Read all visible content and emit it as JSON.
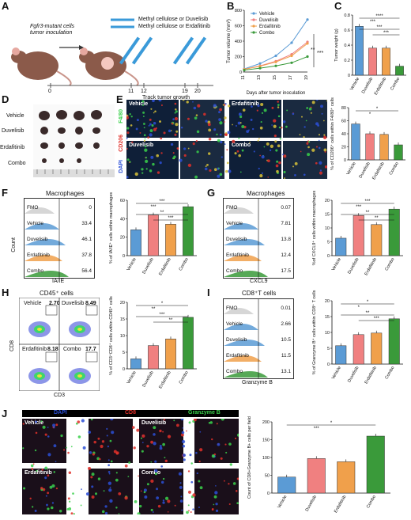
{
  "colors": {
    "vehicle": "#5b9bd5",
    "duvelisib": "#f08080",
    "erdafitinib": "#f0a04b",
    "combo": "#3a9a3a",
    "nucleus": "#2b4fd6",
    "marker_red": "#e0302a",
    "marker_green": "#39d04a"
  },
  "groups": [
    "Vehicle",
    "Duvelisib",
    "Erdafitinib",
    "Combo"
  ],
  "panelA": {
    "label": "A",
    "mouse_text": "Fgfr3-mutant cells tumor inoculation",
    "syringe1": "Methyl cellulose or Duvelisib",
    "syringe2": "Methyl cellulose or Erdafitinib",
    "day0": "0",
    "days": [
      "11",
      "12",
      "19",
      "20"
    ],
    "track": "Track tumor growth"
  },
  "panelD": {
    "label": "D",
    "rows": [
      "Vehicle",
      "Duvelisib",
      "Erdafitinib",
      "Combo"
    ]
  },
  "panelE": {
    "label": "E",
    "stains": [
      "F4/80",
      "CD206",
      "DAPI"
    ],
    "tiles": [
      "Vehicle",
      "Erdafitinib",
      "Duvelisib",
      "Combo"
    ]
  },
  "panelF": {
    "label": "F",
    "title": "Macrophages",
    "xaxis": "IA/IE",
    "yaxis": "Count",
    "rows": [
      "FMO",
      "Vehicle",
      "Duvelisib",
      "Erdafitinib",
      "Combo"
    ],
    "values": [
      "0",
      "33.4",
      "46.1",
      "37.8",
      "56.4"
    ]
  },
  "panelG": {
    "label": "G",
    "title": "Macrophages",
    "xaxis": "CXCL9",
    "rows": [
      "FMO",
      "Vehicle",
      "Duvelisib",
      "Erdafitinib",
      "Combo"
    ],
    "values": [
      "0.07",
      "7.81",
      "13.8",
      "12.4",
      "17.5"
    ]
  },
  "panelH": {
    "label": "H",
    "title": "CD45⁺ cells",
    "xaxis": "CD3",
    "yaxis": "CD8",
    "quads": [
      {
        "name": "Vehicle",
        "value": "2.70"
      },
      {
        "name": "Duvelisib",
        "value": "8.49"
      },
      {
        "name": "Erdafitinib",
        "value": "8.18"
      },
      {
        "name": "Combo",
        "value": "17.7"
      }
    ]
  },
  "panelI": {
    "label": "I",
    "title": "CD8⁺T cells",
    "xaxis": "Granzyme B",
    "rows": [
      "FMO",
      "Vehicle",
      "Duvelisib",
      "Erdafitinib",
      "Combo"
    ],
    "values": [
      "0.01",
      "2.66",
      "10.5",
      "11.5",
      "13.1"
    ]
  },
  "panelJ": {
    "label": "J",
    "stains": [
      "DAPI",
      "CD8",
      "Granzyme B"
    ],
    "tiles": [
      "Vehicle",
      "Duvelisib",
      "Erdafitinib",
      "Combo"
    ]
  },
  "chart_data": [
    {
      "id": "B",
      "type": "line",
      "x": [
        11,
        13,
        15,
        17,
        19
      ],
      "xlabel": "Days after tumor inoculation",
      "ylabel": "Tumor volume (mm³)",
      "ylim": [
        0,
        800
      ],
      "yticks": [
        0,
        200,
        400,
        600,
        800
      ],
      "series": [
        {
          "name": "Vehicle",
          "values": [
            40,
            110,
            210,
            380,
            680
          ]
        },
        {
          "name": "Duvelisib",
          "values": [
            35,
            80,
            140,
            230,
            390
          ]
        },
        {
          "name": "Erdafitinib",
          "values": [
            35,
            75,
            130,
            210,
            370
          ]
        },
        {
          "name": "Combo",
          "values": [
            25,
            50,
            80,
            120,
            200
          ]
        }
      ],
      "annotations": [
        "**",
        "***"
      ]
    },
    {
      "id": "C",
      "type": "bar",
      "categories": [
        "Vehicle",
        "Duvelisib",
        "Erdafitinib",
        "Combo"
      ],
      "values": [
        0.65,
        0.36,
        0.36,
        0.12
      ],
      "ylabel": "Tumor weight (g)",
      "ylim": [
        0,
        0.8
      ],
      "yticks": [
        0.0,
        0.2,
        0.4,
        0.6,
        0.8
      ],
      "sig": [
        "****",
        "***",
        "***",
        "***"
      ]
    },
    {
      "id": "E",
      "type": "bar",
      "categories": [
        "Vehicle",
        "Duvelisib",
        "Erdafitinib",
        "Combo"
      ],
      "values": [
        55,
        40,
        39,
        23
      ],
      "ylabel": "% of CD206⁺ cells within F4/80⁺ cells",
      "ylim": [
        0,
        80
      ],
      "yticks": [
        0,
        20,
        40,
        60,
        80
      ],
      "sig": [
        "*",
        "*"
      ]
    },
    {
      "id": "F",
      "type": "bar",
      "categories": [
        "Vehicle",
        "Duvelisib",
        "Erdafitinib",
        "Combo"
      ],
      "values": [
        28,
        44,
        34,
        53
      ],
      "ylabel": "% of IA/IE⁺ cells within macrophages",
      "ylim": [
        0,
        60
      ],
      "yticks": [
        0,
        20,
        40,
        60
      ],
      "sig": [
        "***",
        "***",
        "**",
        "***"
      ]
    },
    {
      "id": "G",
      "type": "bar",
      "categories": [
        "Vehicle",
        "Duvelisib",
        "Erdafitinib",
        "Combo"
      ],
      "values": [
        6.3,
        14.5,
        11.2,
        16.8
      ],
      "ylabel": "%of CXCL9⁺ cells within macrophages",
      "ylim": [
        0,
        20
      ],
      "yticks": [
        0,
        5,
        10,
        15,
        20
      ],
      "sig": [
        "***",
        "***",
        "**",
        "**"
      ]
    },
    {
      "id": "H",
      "type": "bar",
      "categories": [
        "Vehicle",
        "Duvelisib",
        "Erdafitinib",
        "Combo"
      ],
      "values": [
        3,
        7,
        9,
        15.5
      ],
      "ylabel": "% of CD3⁺CD8⁺ cells within CD45⁺ cells",
      "ylim": [
        0,
        20
      ],
      "yticks": [
        0,
        5,
        10,
        15,
        20
      ],
      "sig": [
        "*",
        "**",
        "***",
        "**"
      ]
    },
    {
      "id": "I",
      "type": "bar",
      "categories": [
        "Vehicle",
        "Duvelisib",
        "Erdafitinib",
        "Combo"
      ],
      "values": [
        5.8,
        9.3,
        9.8,
        14.3
      ],
      "ylabel": "% of Granzyme B⁺ cells within CD8⁺ T cells",
      "ylim": [
        0,
        20
      ],
      "yticks": [
        0,
        5,
        10,
        15,
        20
      ],
      "sig": [
        "*",
        "*",
        "**",
        "***"
      ]
    },
    {
      "id": "J",
      "type": "bar",
      "categories": [
        "Vehicle",
        "Duvelisib",
        "Erdafitinib",
        "Combo"
      ],
      "values": [
        45,
        97,
        88,
        160
      ],
      "ylabel": "Count of CD8+Granzyme B+ cells per field",
      "ylim": [
        0,
        200
      ],
      "yticks": [
        0,
        50,
        100,
        150,
        200
      ],
      "sig": [
        "*",
        "***"
      ]
    }
  ]
}
